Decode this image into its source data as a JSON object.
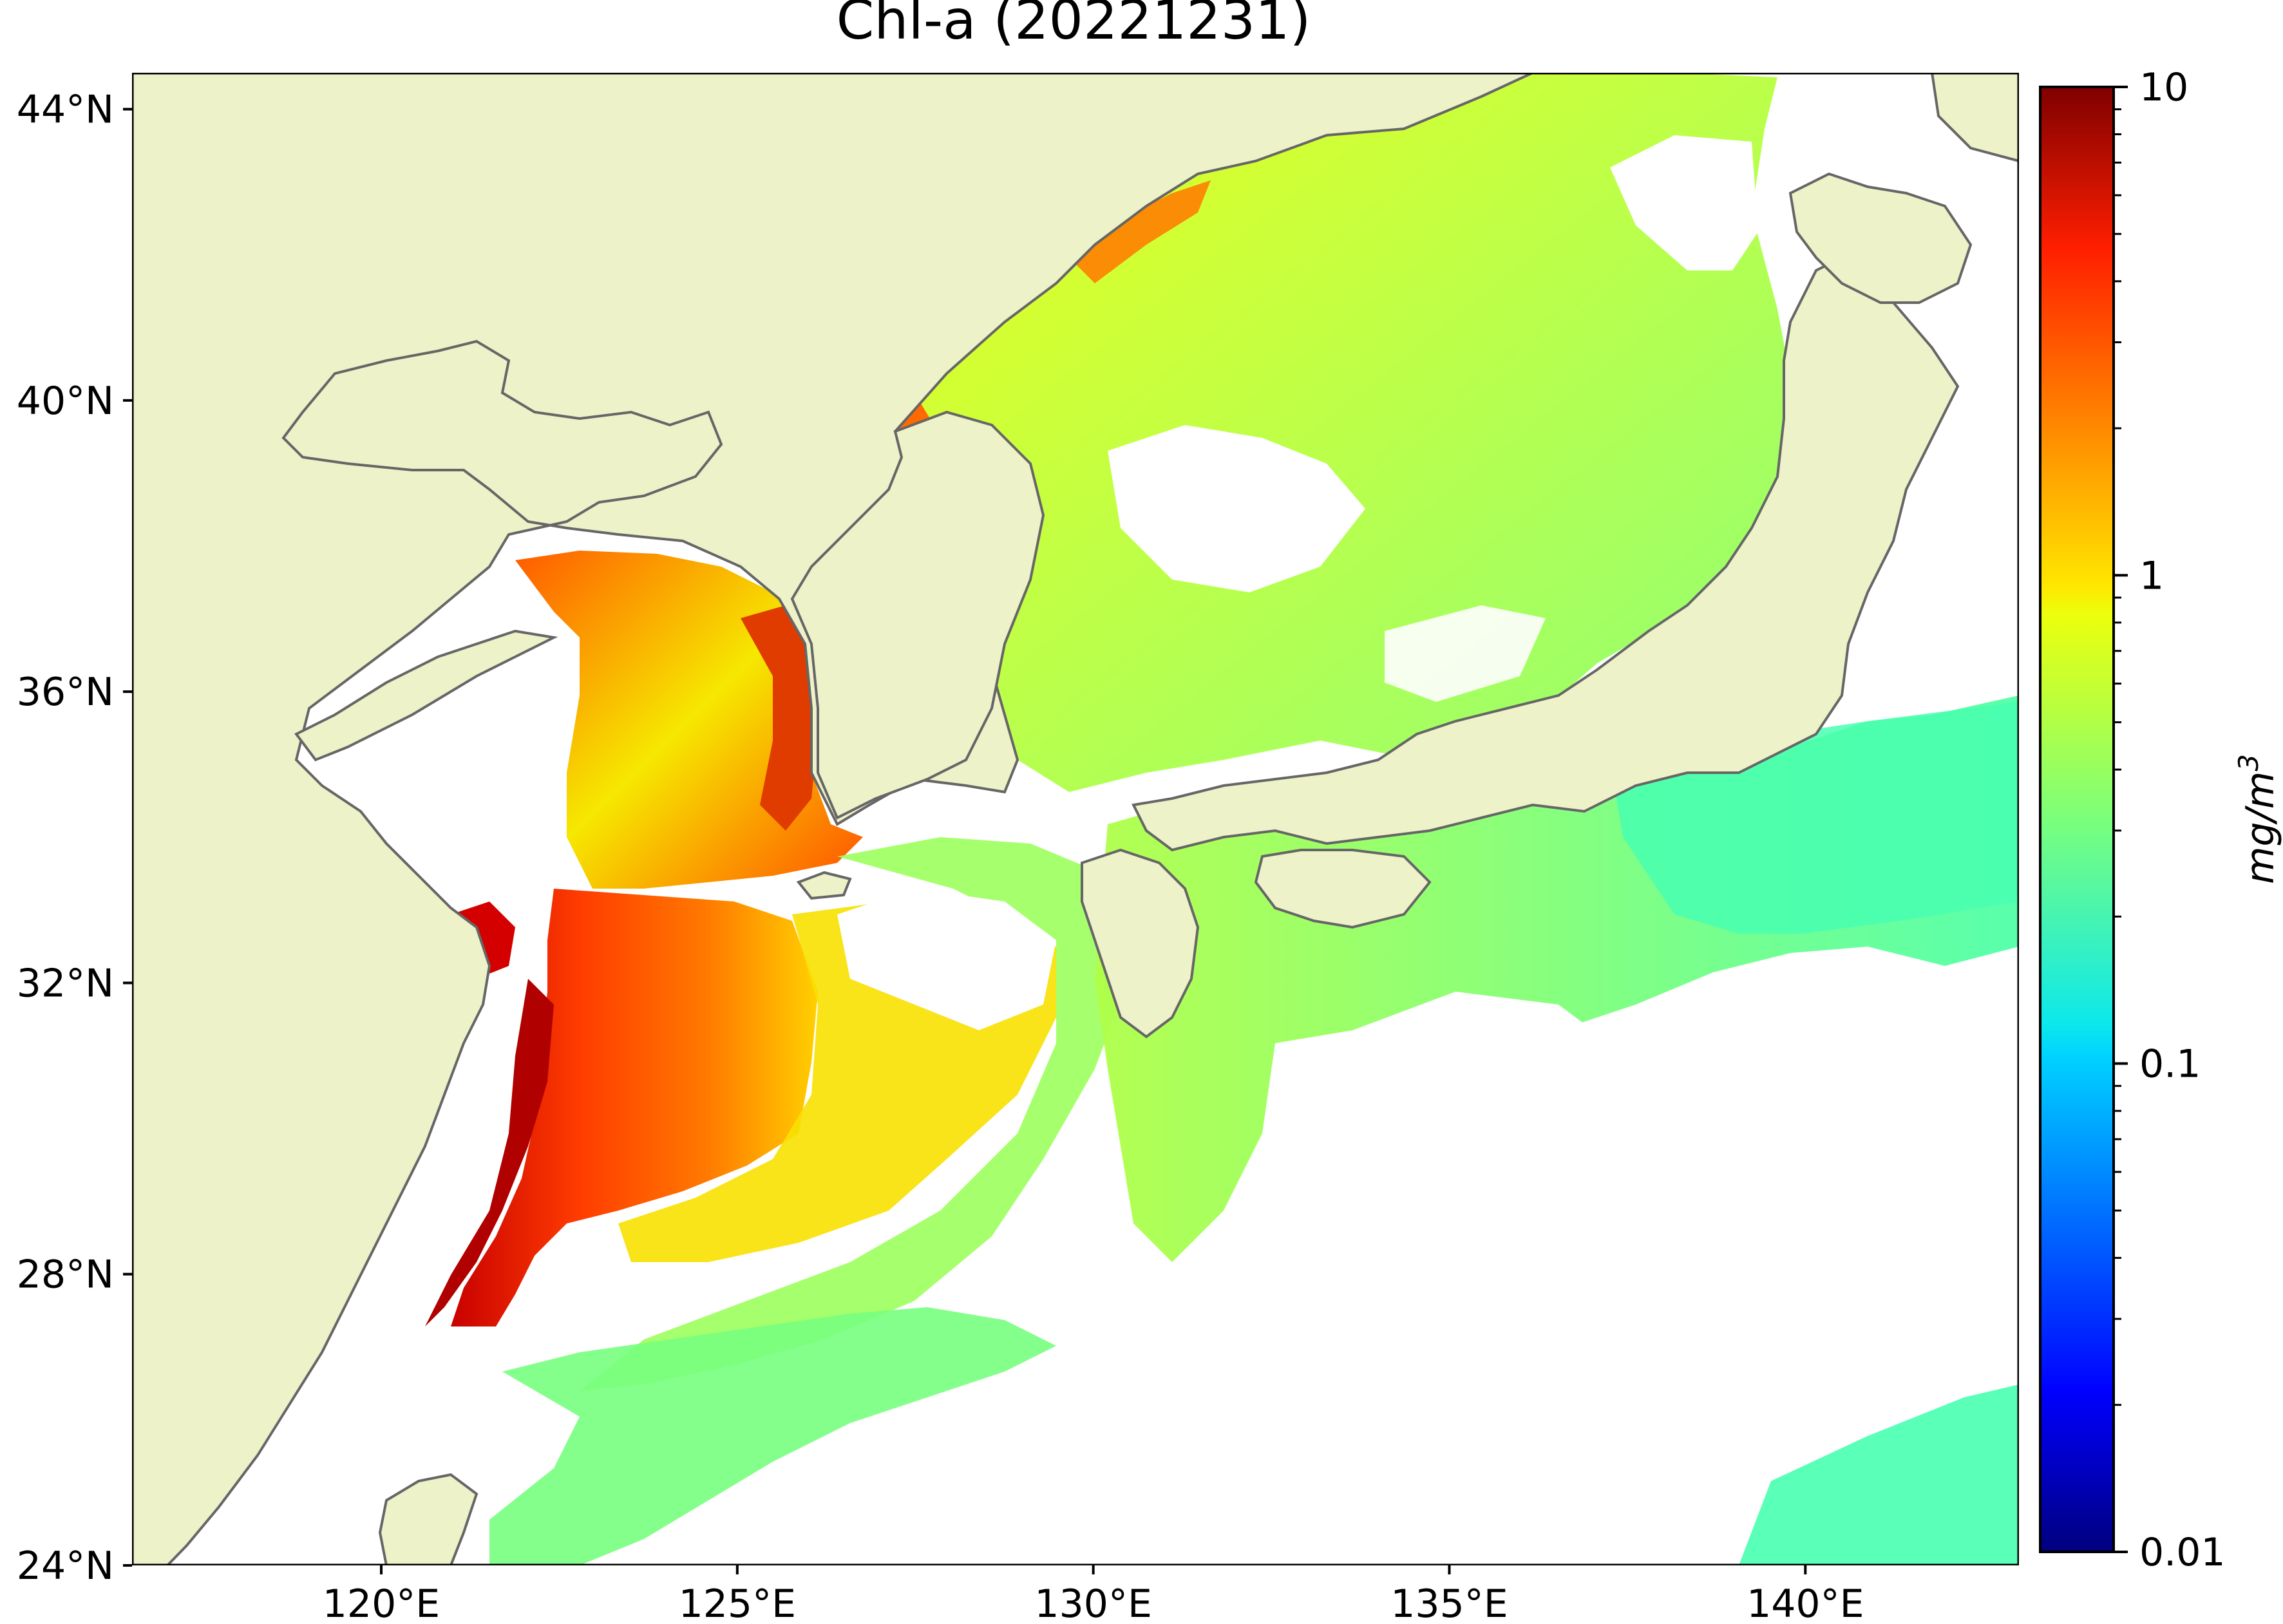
{
  "title": "Chl-a (20221231)",
  "map": {
    "lon_range": [
      116.5,
      143.0
    ],
    "lat_range": [
      24.0,
      44.5
    ],
    "lon_ticks": [
      {
        "value": 120,
        "label": "120°E"
      },
      {
        "value": 125,
        "label": "125°E"
      },
      {
        "value": 130,
        "label": "130°E"
      },
      {
        "value": 135,
        "label": "135°E"
      },
      {
        "value": 140,
        "label": "140°E"
      }
    ],
    "lat_ticks": [
      {
        "value": 44,
        "label": "44°N"
      },
      {
        "value": 40,
        "label": "40°N"
      },
      {
        "value": 36,
        "label": "36°N"
      },
      {
        "value": 32,
        "label": "32°N"
      },
      {
        "value": 28,
        "label": "28°N"
      },
      {
        "value": 24,
        "label": "24°N"
      }
    ],
    "land_color": "#eef2c8",
    "coastline_color": "#666666",
    "no_data_color": "#ffffff"
  },
  "colorbar": {
    "scale": "log",
    "range": [
      0.01,
      10
    ],
    "colormap": "jet",
    "ticks": [
      {
        "value": 10,
        "label": "10"
      },
      {
        "value": 1,
        "label": "1"
      },
      {
        "value": 0.1,
        "label": "0.1"
      },
      {
        "value": 0.01,
        "label": "0.01"
      }
    ],
    "unit_base": "mg/m",
    "unit_exp": "3"
  }
}
